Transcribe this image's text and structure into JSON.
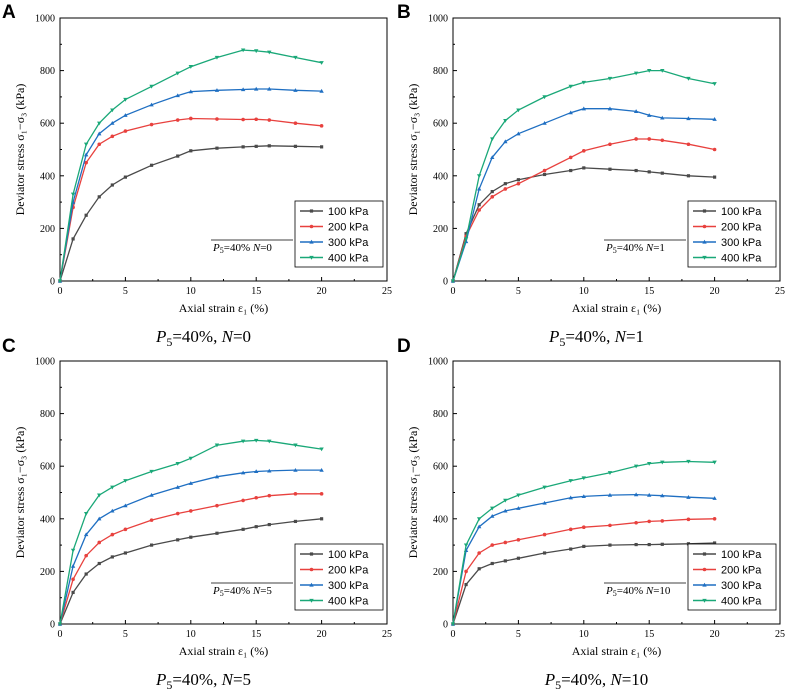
{
  "figure": {
    "series_names": [
      "100 kPa",
      "200 kPa",
      "300 kPa",
      "400 kPa"
    ],
    "series_colors": [
      "#4a4a4a",
      "#e8413e",
      "#1f6fc2",
      "#1aa878"
    ],
    "x_axis": {
      "label": "Axial strain ε₁ (%)",
      "range": [
        0,
        25
      ],
      "ticks": [
        0,
        5,
        10,
        15,
        20,
        25
      ]
    },
    "y_axis": {
      "label": "Deviator stress σ₁−σ₃ (kPa)",
      "range": [
        0,
        1000
      ],
      "ticks": [
        0,
        200,
        400,
        600,
        800,
        1000
      ]
    }
  },
  "chart_data": [
    {
      "type": "line",
      "panel": "A",
      "title": "P5=40%, N=0",
      "annotation": "P5=40% N=0",
      "xlabel": "Axial strain ε₁ (%)",
      "ylabel": "Deviator stress σ₁−σ₃ (kPa)",
      "xlim": [
        0,
        25
      ],
      "ylim": [
        0,
        1000
      ],
      "x": [
        0,
        1,
        2,
        3,
        4,
        5,
        7,
        9,
        10,
        12,
        14,
        15,
        16,
        18,
        20
      ],
      "series": [
        {
          "name": "100 kPa",
          "values": [
            0,
            160,
            250,
            320,
            365,
            395,
            440,
            475,
            495,
            505,
            510,
            512,
            514,
            512,
            510
          ]
        },
        {
          "name": "200 kPa",
          "values": [
            0,
            280,
            450,
            520,
            550,
            570,
            595,
            612,
            618,
            616,
            614,
            615,
            612,
            600,
            590
          ]
        },
        {
          "name": "300 kPa",
          "values": [
            0,
            300,
            480,
            560,
            600,
            630,
            670,
            705,
            720,
            725,
            728,
            730,
            730,
            725,
            722
          ]
        },
        {
          "name": "400 kPa",
          "values": [
            0,
            330,
            520,
            600,
            650,
            690,
            740,
            790,
            815,
            850,
            878,
            875,
            870,
            850,
            830
          ]
        }
      ]
    },
    {
      "type": "line",
      "panel": "B",
      "title": "P5=40%, N=1",
      "annotation": "P5=40% N=1",
      "xlabel": "Axial strain ε₁ (%)",
      "ylabel": "Deviator stress σ₁−σ₃ (kPa)",
      "xlim": [
        0,
        25
      ],
      "ylim": [
        0,
        1000
      ],
      "x": [
        0,
        1,
        2,
        3,
        4,
        5,
        7,
        9,
        10,
        12,
        14,
        15,
        16,
        18,
        20
      ],
      "series": [
        {
          "name": "100 kPa",
          "values": [
            0,
            180,
            290,
            340,
            370,
            385,
            405,
            420,
            430,
            425,
            420,
            415,
            410,
            400,
            395
          ]
        },
        {
          "name": "200 kPa",
          "values": [
            0,
            170,
            270,
            320,
            350,
            370,
            420,
            470,
            495,
            520,
            540,
            540,
            535,
            520,
            500
          ]
        },
        {
          "name": "300 kPa",
          "values": [
            0,
            150,
            350,
            470,
            530,
            560,
            600,
            640,
            655,
            655,
            645,
            630,
            620,
            618,
            615
          ]
        },
        {
          "name": "400 kPa",
          "values": [
            0,
            160,
            400,
            540,
            610,
            650,
            700,
            740,
            755,
            770,
            790,
            800,
            800,
            770,
            750
          ]
        }
      ]
    },
    {
      "type": "line",
      "panel": "C",
      "title": "P5=40%, N=5",
      "annotation": "P5=40% N=5",
      "xlabel": "Axial strain ε₁ (%)",
      "ylabel": "Deviator stress σ₁−σ₃ (kPa)",
      "xlim": [
        0,
        25
      ],
      "ylim": [
        0,
        1000
      ],
      "x": [
        0,
        1,
        2,
        3,
        4,
        5,
        7,
        9,
        10,
        12,
        14,
        15,
        16,
        18,
        20
      ],
      "series": [
        {
          "name": "100 kPa",
          "values": [
            0,
            120,
            190,
            230,
            255,
            270,
            300,
            320,
            330,
            345,
            360,
            370,
            378,
            390,
            400
          ]
        },
        {
          "name": "200 kPa",
          "values": [
            0,
            170,
            260,
            310,
            340,
            360,
            395,
            420,
            430,
            450,
            470,
            480,
            488,
            495,
            495
          ]
        },
        {
          "name": "300 kPa",
          "values": [
            0,
            220,
            340,
            400,
            430,
            450,
            490,
            520,
            535,
            560,
            575,
            580,
            582,
            585,
            585
          ]
        },
        {
          "name": "400 kPa",
          "values": [
            0,
            280,
            420,
            490,
            520,
            545,
            580,
            610,
            630,
            680,
            695,
            698,
            695,
            680,
            665
          ]
        }
      ]
    },
    {
      "type": "line",
      "panel": "D",
      "title": "P5=40%, N=10",
      "annotation": "P5=40% N=10",
      "xlabel": "Axial strain ε₁ (%)",
      "ylabel": "Deviator stress σ₁−σ₃ (kPa)",
      "xlim": [
        0,
        25
      ],
      "ylim": [
        0,
        1000
      ],
      "x": [
        0,
        1,
        2,
        3,
        4,
        5,
        7,
        9,
        10,
        12,
        14,
        15,
        16,
        18,
        20
      ],
      "series": [
        {
          "name": "100 kPa",
          "values": [
            0,
            150,
            210,
            230,
            240,
            250,
            270,
            285,
            295,
            300,
            302,
            302,
            303,
            305,
            308
          ]
        },
        {
          "name": "200 kPa",
          "values": [
            0,
            200,
            270,
            300,
            310,
            320,
            340,
            360,
            368,
            375,
            385,
            390,
            392,
            398,
            400
          ]
        },
        {
          "name": "300 kPa",
          "values": [
            0,
            280,
            370,
            410,
            430,
            440,
            460,
            480,
            485,
            490,
            492,
            490,
            488,
            482,
            478
          ]
        },
        {
          "name": "400 kPa",
          "values": [
            0,
            300,
            400,
            440,
            470,
            490,
            520,
            545,
            555,
            575,
            600,
            610,
            615,
            618,
            615
          ]
        }
      ]
    }
  ]
}
